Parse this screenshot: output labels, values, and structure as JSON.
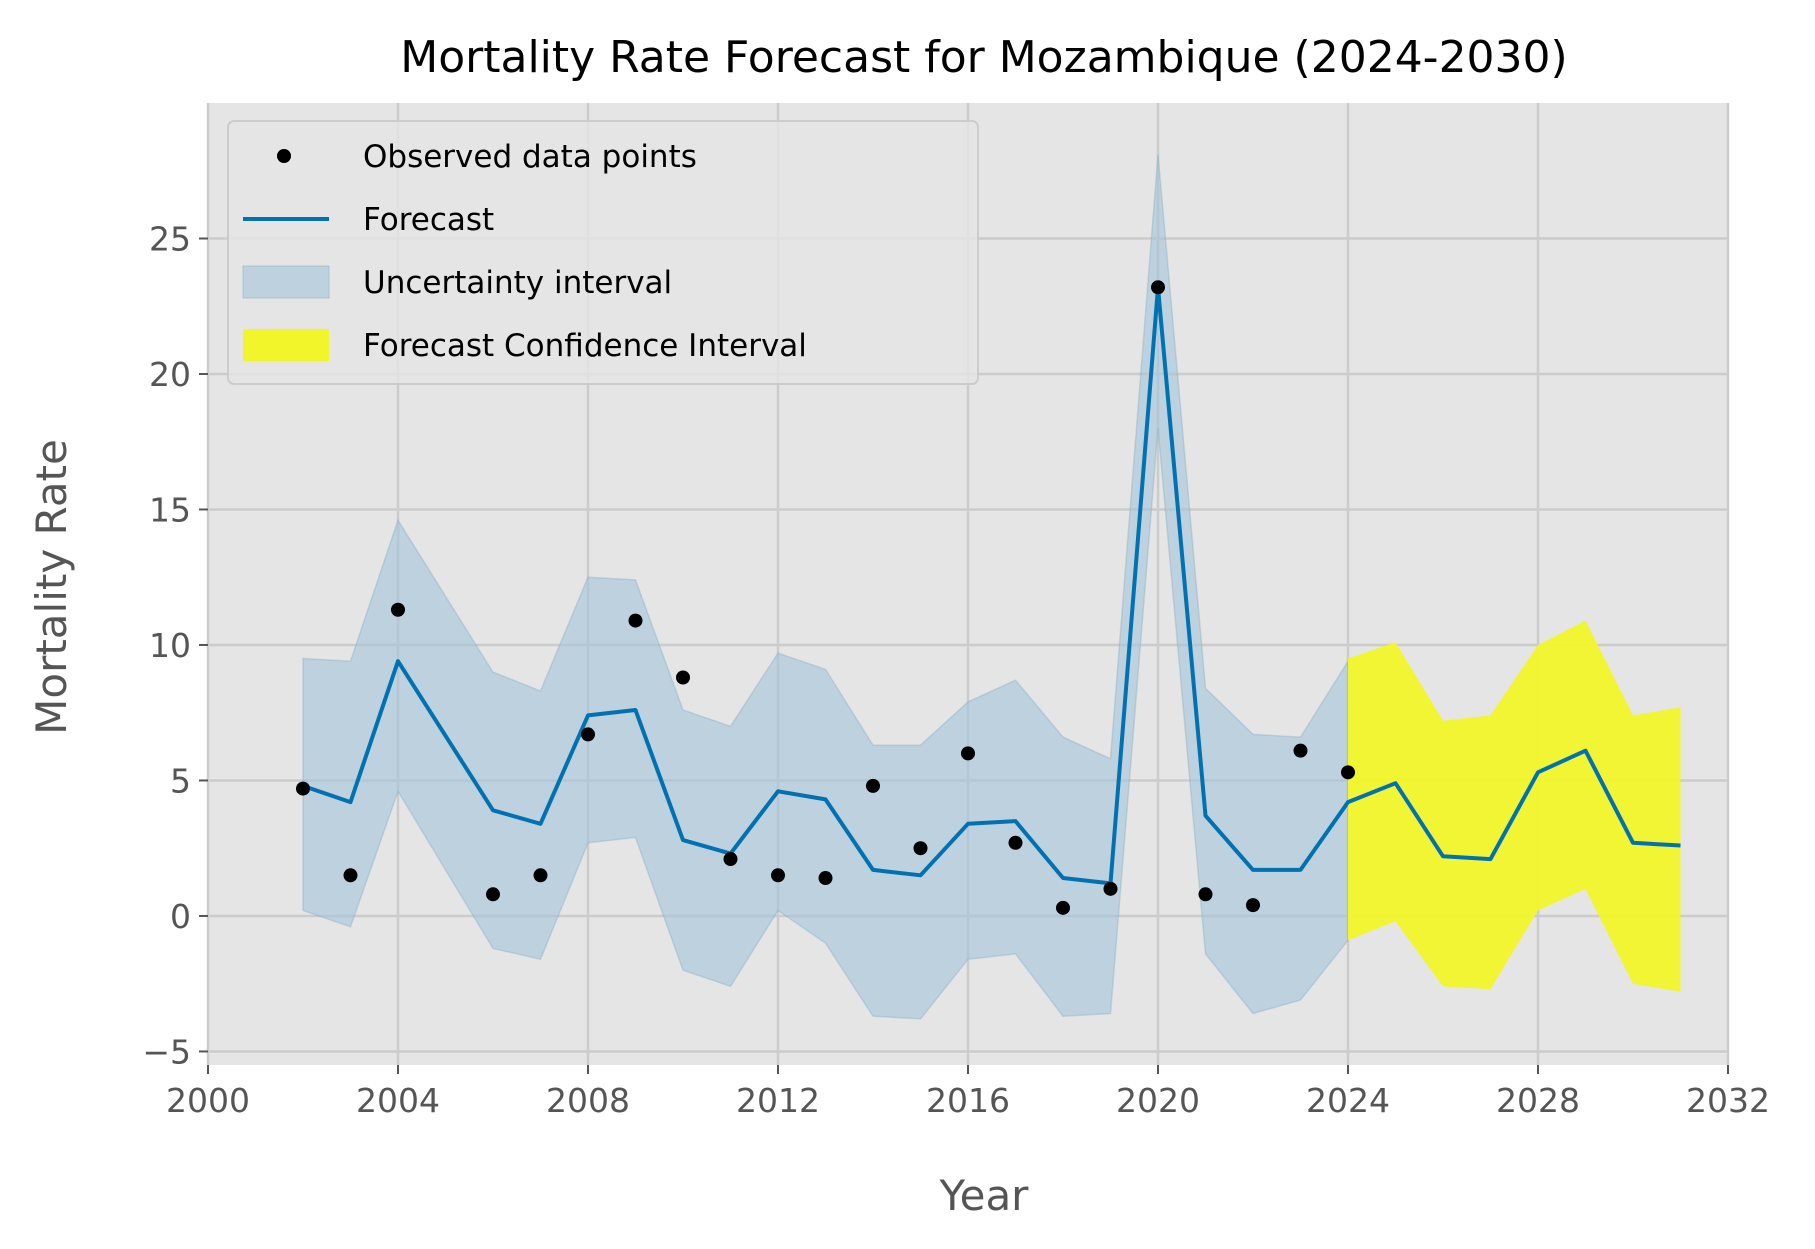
{
  "chart_data": {
    "type": "line",
    "title": "Mortality Rate Forecast for Mozambique (2024-2030)",
    "xlabel": "Year",
    "ylabel": "Mortality Rate",
    "xlim": [
      2000,
      2032
    ],
    "ylim": [
      -5.5,
      30
    ],
    "xticks": [
      2000,
      2004,
      2008,
      2012,
      2016,
      2020,
      2024,
      2028,
      2032
    ],
    "xtick_labels": [
      "2000",
      "2004",
      "2008",
      "2012",
      "2016",
      "2020",
      "2024",
      "2028",
      "2032"
    ],
    "yticks": [
      -5,
      0,
      5,
      10,
      15,
      20,
      25
    ],
    "ytick_labels": [
      "−5",
      "0",
      "5",
      "10",
      "15",
      "20",
      "25"
    ],
    "grid": true,
    "legend_position": "top-left",
    "legend": [
      {
        "label": "Observed data points",
        "kind": "point"
      },
      {
        "label": "Forecast",
        "kind": "line"
      },
      {
        "label": "Uncertainty interval",
        "kind": "band"
      },
      {
        "label": "Forecast Confidence Interval",
        "kind": "band-forecast"
      }
    ],
    "colors": {
      "background": "#e5e5e5",
      "grid": "#cccccc",
      "observed": "#000000",
      "forecast": "#0072b2",
      "uncertainty": "#a2c4d8",
      "confidence": "#f2f52a"
    },
    "observed": {
      "x": [
        2002,
        2003,
        2004,
        2006,
        2007,
        2008,
        2009,
        2010,
        2011,
        2012,
        2013,
        2014,
        2015,
        2016,
        2017,
        2018,
        2019,
        2020,
        2021,
        2022,
        2023,
        2024
      ],
      "y": [
        4.7,
        1.5,
        11.3,
        0.8,
        1.5,
        6.7,
        10.9,
        8.8,
        2.1,
        1.5,
        1.4,
        4.8,
        2.5,
        6.0,
        2.7,
        0.3,
        1.0,
        23.2,
        0.8,
        0.4,
        6.1,
        5.3
      ]
    },
    "forecast": {
      "x": [
        2002,
        2003,
        2004,
        2006,
        2007,
        2008,
        2009,
        2010,
        2011,
        2012,
        2013,
        2014,
        2015,
        2016,
        2017,
        2018,
        2019,
        2020,
        2021,
        2022,
        2023,
        2024,
        2025,
        2026,
        2027,
        2028,
        2029,
        2030,
        2031
      ],
      "y": [
        4.8,
        4.2,
        9.4,
        3.9,
        3.4,
        7.4,
        7.6,
        2.8,
        2.3,
        4.6,
        4.3,
        1.7,
        1.5,
        3.4,
        3.5,
        1.4,
        1.2,
        23.2,
        3.7,
        1.7,
        1.7,
        4.2,
        4.9,
        2.2,
        2.1,
        5.3,
        6.1,
        2.7,
        2.6
      ]
    },
    "uncertainty_interval": {
      "x": [
        2002,
        2003,
        2004,
        2006,
        2007,
        2008,
        2009,
        2010,
        2011,
        2012,
        2013,
        2014,
        2015,
        2016,
        2017,
        2018,
        2019,
        2020,
        2021,
        2022,
        2023,
        2024
      ],
      "lower": [
        0.2,
        -0.4,
        4.6,
        -1.2,
        -1.6,
        2.7,
        2.9,
        -2.0,
        -2.6,
        0.2,
        -1.0,
        -3.7,
        -3.8,
        -1.6,
        -1.4,
        -3.7,
        -3.6,
        18.0,
        -1.4,
        -3.6,
        -3.1,
        -0.9
      ],
      "upper": [
        9.5,
        9.4,
        14.6,
        9.0,
        8.3,
        12.5,
        12.4,
        7.6,
        7.0,
        9.7,
        9.1,
        6.3,
        6.3,
        7.9,
        8.7,
        6.6,
        5.8,
        28.1,
        8.4,
        6.7,
        6.6,
        9.4
      ]
    },
    "forecast_confidence_interval": {
      "x": [
        2024,
        2025,
        2026,
        2027,
        2028,
        2029,
        2030,
        2031
      ],
      "lower": [
        -0.9,
        -0.2,
        -2.6,
        -2.7,
        0.2,
        1.0,
        -2.5,
        -2.8
      ],
      "upper": [
        9.5,
        10.1,
        7.2,
        7.4,
        10.0,
        10.9,
        7.4,
        7.7
      ]
    }
  }
}
